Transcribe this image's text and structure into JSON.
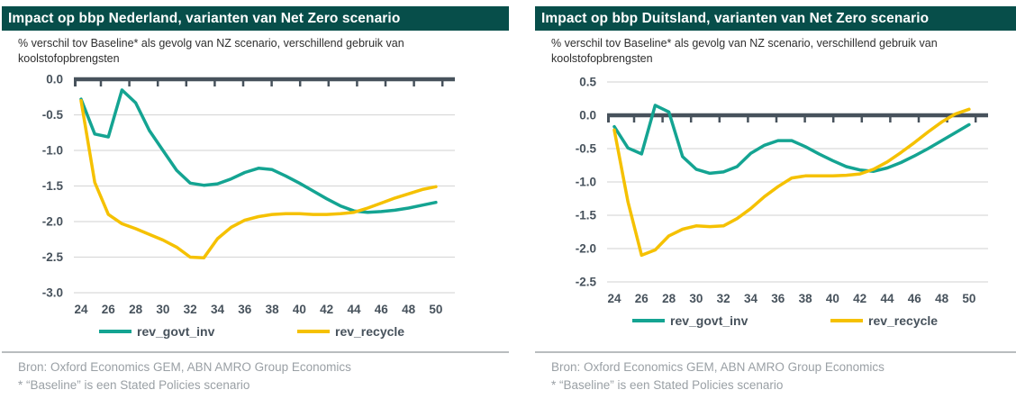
{
  "colors": {
    "title_bar_bg": "#074E4A",
    "series_teal": "#14A492",
    "series_yellow": "#F5C100",
    "axis": "#47525C",
    "gridline": "#DADADA",
    "subtitle_text": "#2E2E2E",
    "footer_text": "#9AA0A5",
    "divider": "#B9BDBF"
  },
  "footer": {
    "source": "Bron: Oxford Economics GEM, ABN AMRO Group Economics",
    "note": "* “Baseline” is een Stated Policies scenario"
  },
  "chart_data": [
    {
      "type": "line",
      "title": "Impact op bbp Nederland, varianten van Net Zero scenario",
      "subtitle": "% verschil tov Baseline* als gevolg van NZ scenario, verschillend gebruik van koolstofopbrengsten",
      "xlabel": "",
      "ylabel": "",
      "x": [
        24,
        25,
        26,
        27,
        28,
        29,
        30,
        31,
        32,
        33,
        34,
        35,
        36,
        37,
        38,
        39,
        40,
        41,
        42,
        43,
        44,
        45,
        46,
        47,
        48,
        49,
        50
      ],
      "xticks": [
        24,
        26,
        28,
        30,
        32,
        34,
        36,
        38,
        40,
        42,
        44,
        46,
        48,
        50
      ],
      "ylim": [
        -3.0,
        0.0
      ],
      "yticks": [
        0.0,
        -0.5,
        -1.0,
        -1.5,
        -2.0,
        -2.5,
        -3.0
      ],
      "grid": true,
      "legend_position": "bottom",
      "series": [
        {
          "name": "rev_govt_inv",
          "color": "#14A492",
          "values": [
            -0.28,
            -0.77,
            -0.81,
            -0.15,
            -0.33,
            -0.72,
            -1.0,
            -1.28,
            -1.46,
            -1.49,
            -1.47,
            -1.4,
            -1.31,
            -1.25,
            -1.27,
            -1.36,
            -1.46,
            -1.57,
            -1.68,
            -1.78,
            -1.85,
            -1.87,
            -1.86,
            -1.84,
            -1.81,
            -1.77,
            -1.73
          ]
        },
        {
          "name": "rev_recycle",
          "color": "#F5C100",
          "values": [
            -0.3,
            -1.45,
            -1.9,
            -2.03,
            -2.1,
            -2.18,
            -2.26,
            -2.36,
            -2.5,
            -2.51,
            -2.24,
            -2.08,
            -1.98,
            -1.93,
            -1.9,
            -1.89,
            -1.89,
            -1.9,
            -1.9,
            -1.89,
            -1.87,
            -1.81,
            -1.74,
            -1.67,
            -1.61,
            -1.55,
            -1.51
          ]
        }
      ]
    },
    {
      "type": "line",
      "title": "Impact op bbp Duitsland, varianten van Net Zero scenario",
      "subtitle": "% verschil tov Baseline* als gevolg van NZ scenario, verschillend gebruik van koolstofopbrengsten",
      "xlabel": "",
      "ylabel": "",
      "x": [
        24,
        25,
        26,
        27,
        28,
        29,
        30,
        31,
        32,
        33,
        34,
        35,
        36,
        37,
        38,
        39,
        40,
        41,
        42,
        43,
        44,
        45,
        46,
        47,
        48,
        49,
        50
      ],
      "xticks": [
        24,
        26,
        28,
        30,
        32,
        34,
        36,
        38,
        40,
        42,
        44,
        46,
        48,
        50
      ],
      "ylim": [
        -2.5,
        0.5
      ],
      "yticks": [
        0.5,
        0.0,
        -0.5,
        -1.0,
        -1.5,
        -2.0,
        -2.5
      ],
      "grid": true,
      "legend_position": "bottom",
      "series": [
        {
          "name": "rev_govt_inv",
          "color": "#14A492",
          "values": [
            -0.17,
            -0.49,
            -0.58,
            0.15,
            0.05,
            -0.62,
            -0.81,
            -0.87,
            -0.85,
            -0.77,
            -0.57,
            -0.45,
            -0.38,
            -0.38,
            -0.47,
            -0.58,
            -0.68,
            -0.77,
            -0.82,
            -0.84,
            -0.79,
            -0.71,
            -0.61,
            -0.5,
            -0.38,
            -0.26,
            -0.14
          ]
        },
        {
          "name": "rev_recycle",
          "color": "#F5C100",
          "values": [
            -0.22,
            -1.3,
            -2.1,
            -2.02,
            -1.81,
            -1.71,
            -1.66,
            -1.67,
            -1.66,
            -1.55,
            -1.4,
            -1.22,
            -1.07,
            -0.94,
            -0.91,
            -0.91,
            -0.91,
            -0.9,
            -0.88,
            -0.81,
            -0.7,
            -0.56,
            -0.41,
            -0.25,
            -0.1,
            0.02,
            0.09
          ]
        }
      ]
    }
  ]
}
